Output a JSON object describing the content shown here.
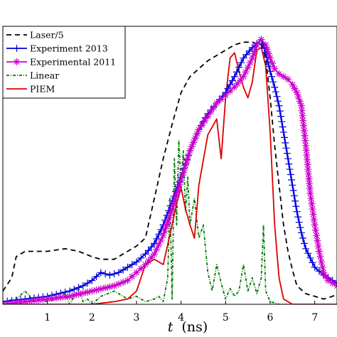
{
  "chart_data": {
    "type": "line",
    "title": "",
    "xlabel_var": "t",
    "xlabel_unit": "(ns)",
    "ylabel": "",
    "xlim": [
      0.0,
      7.5
    ],
    "ylim": [
      0.0,
      1.05
    ],
    "x_ticks": [
      "1",
      "2",
      "3",
      "4",
      "5",
      "6",
      "7"
    ],
    "grid": false,
    "legend_position": "top-left",
    "series": [
      {
        "name": "Laser/5",
        "color": "#000000",
        "dash": "7,5",
        "marker": "none",
        "x": [
          0.0,
          0.2,
          0.3,
          0.5,
          0.8,
          1.0,
          1.4,
          1.7,
          2.0,
          2.2,
          2.5,
          2.8,
          3.0,
          3.2,
          3.4,
          3.6,
          3.8,
          4.0,
          4.2,
          4.4,
          4.6,
          4.8,
          5.0,
          5.2,
          5.4,
          5.6,
          5.8,
          5.9,
          6.0,
          6.1,
          6.2,
          6.3,
          6.4,
          6.5,
          6.6,
          6.8,
          7.0,
          7.2,
          7.4,
          7.5
        ],
        "y": [
          0.05,
          0.1,
          0.18,
          0.2,
          0.2,
          0.2,
          0.21,
          0.2,
          0.18,
          0.17,
          0.17,
          0.2,
          0.22,
          0.25,
          0.4,
          0.55,
          0.68,
          0.8,
          0.86,
          0.89,
          0.92,
          0.94,
          0.96,
          0.98,
          0.99,
          0.99,
          0.98,
          0.93,
          0.78,
          0.6,
          0.45,
          0.3,
          0.2,
          0.13,
          0.07,
          0.04,
          0.03,
          0.02,
          0.03,
          0.04
        ]
      },
      {
        "name": "Experiment 2013",
        "color": "#0000dd",
        "dash": "",
        "marker": "plus",
        "x": [
          0.0,
          0.5,
          1.0,
          1.5,
          1.8,
          2.0,
          2.2,
          2.4,
          2.6,
          2.8,
          3.0,
          3.2,
          3.4,
          3.6,
          3.8,
          4.0,
          4.2,
          4.4,
          4.6,
          4.8,
          5.0,
          5.2,
          5.4,
          5.6,
          5.8,
          5.9,
          6.0,
          6.1,
          6.2,
          6.3,
          6.4,
          6.5,
          6.6,
          6.7,
          6.8,
          7.0,
          7.2,
          7.4,
          7.5
        ],
        "y": [
          0.01,
          0.02,
          0.03,
          0.05,
          0.07,
          0.09,
          0.12,
          0.11,
          0.12,
          0.14,
          0.16,
          0.19,
          0.23,
          0.3,
          0.39,
          0.48,
          0.58,
          0.66,
          0.72,
          0.76,
          0.8,
          0.86,
          0.93,
          0.97,
          1.0,
          0.95,
          0.88,
          0.82,
          0.75,
          0.65,
          0.55,
          0.45,
          0.35,
          0.27,
          0.21,
          0.14,
          0.11,
          0.09,
          0.08
        ]
      },
      {
        "name": "Experimental 2011",
        "color": "#cc00cc",
        "dash": "",
        "marker": "star",
        "x": [
          0.0,
          0.5,
          1.0,
          1.5,
          2.0,
          2.5,
          2.8,
          3.0,
          3.2,
          3.4,
          3.6,
          3.8,
          4.0,
          4.2,
          4.4,
          4.6,
          4.8,
          5.0,
          5.2,
          5.4,
          5.6,
          5.7,
          5.8,
          5.9,
          6.0,
          6.1,
          6.2,
          6.4,
          6.5,
          6.6,
          6.7,
          6.8,
          6.9,
          7.0,
          7.1,
          7.2,
          7.3,
          7.4,
          7.5
        ],
        "y": [
          0.0,
          0.01,
          0.02,
          0.03,
          0.05,
          0.07,
          0.09,
          0.12,
          0.15,
          0.19,
          0.26,
          0.36,
          0.47,
          0.58,
          0.66,
          0.71,
          0.76,
          0.79,
          0.82,
          0.86,
          0.93,
          0.98,
          1.0,
          0.98,
          0.93,
          0.89,
          0.87,
          0.85,
          0.83,
          0.8,
          0.75,
          0.6,
          0.42,
          0.3,
          0.2,
          0.12,
          0.09,
          0.08,
          0.07
        ]
      },
      {
        "name": "Linear",
        "color": "#007700",
        "dash": "4,2,1,2",
        "marker": "none",
        "x": [
          0.0,
          0.3,
          0.5,
          0.6,
          0.7,
          0.8,
          1.0,
          1.2,
          1.4,
          1.5,
          1.6,
          1.7,
          1.8,
          1.9,
          2.0,
          2.2,
          2.5,
          2.8,
          3.0,
          3.2,
          3.4,
          3.5,
          3.6,
          3.7,
          3.75,
          3.8,
          3.85,
          3.9,
          3.95,
          4.0,
          4.05,
          4.1,
          4.15,
          4.2,
          4.3,
          4.4,
          4.5,
          4.6,
          4.7,
          4.8,
          4.9,
          5.0,
          5.1,
          5.2,
          5.3,
          5.4,
          5.5,
          5.6,
          5.7,
          5.8,
          5.85,
          5.9,
          6.0,
          6.2,
          6.5,
          7.0,
          7.5
        ],
        "y": [
          0.01,
          0.02,
          0.05,
          0.03,
          0.01,
          0.02,
          0.01,
          0.02,
          0.04,
          0.0,
          0.03,
          0.06,
          0.01,
          0.02,
          0.0,
          0.03,
          0.05,
          0.02,
          0.03,
          0.01,
          0.02,
          0.03,
          0.01,
          0.1,
          0.4,
          0.02,
          0.55,
          0.3,
          0.62,
          0.45,
          0.58,
          0.35,
          0.48,
          0.3,
          0.4,
          0.25,
          0.3,
          0.12,
          0.05,
          0.15,
          0.08,
          0.02,
          0.06,
          0.03,
          0.05,
          0.15,
          0.05,
          0.1,
          0.04,
          0.1,
          0.3,
          0.05,
          0.01,
          0.0,
          0.0,
          0.0,
          0.0
        ]
      },
      {
        "name": "PIEM",
        "color": "#dd0000",
        "dash": "",
        "marker": "none",
        "x": [
          0.0,
          1.0,
          2.0,
          2.5,
          2.8,
          3.0,
          3.1,
          3.2,
          3.4,
          3.6,
          3.8,
          3.9,
          4.0,
          4.1,
          4.2,
          4.3,
          4.4,
          4.6,
          4.8,
          4.9,
          5.0,
          5.1,
          5.2,
          5.3,
          5.4,
          5.5,
          5.6,
          5.7,
          5.8,
          5.9,
          6.0,
          6.1,
          6.2,
          6.3,
          6.5,
          7.0,
          7.5
        ],
        "y": [
          0.0,
          0.0,
          0.0,
          0.01,
          0.02,
          0.05,
          0.1,
          0.15,
          0.17,
          0.15,
          0.3,
          0.38,
          0.44,
          0.36,
          0.3,
          0.25,
          0.45,
          0.64,
          0.7,
          0.55,
          0.78,
          0.93,
          0.95,
          0.88,
          0.82,
          0.78,
          0.84,
          0.96,
          0.97,
          0.9,
          0.65,
          0.3,
          0.1,
          0.02,
          0.0,
          0.0,
          0.0
        ]
      }
    ]
  }
}
